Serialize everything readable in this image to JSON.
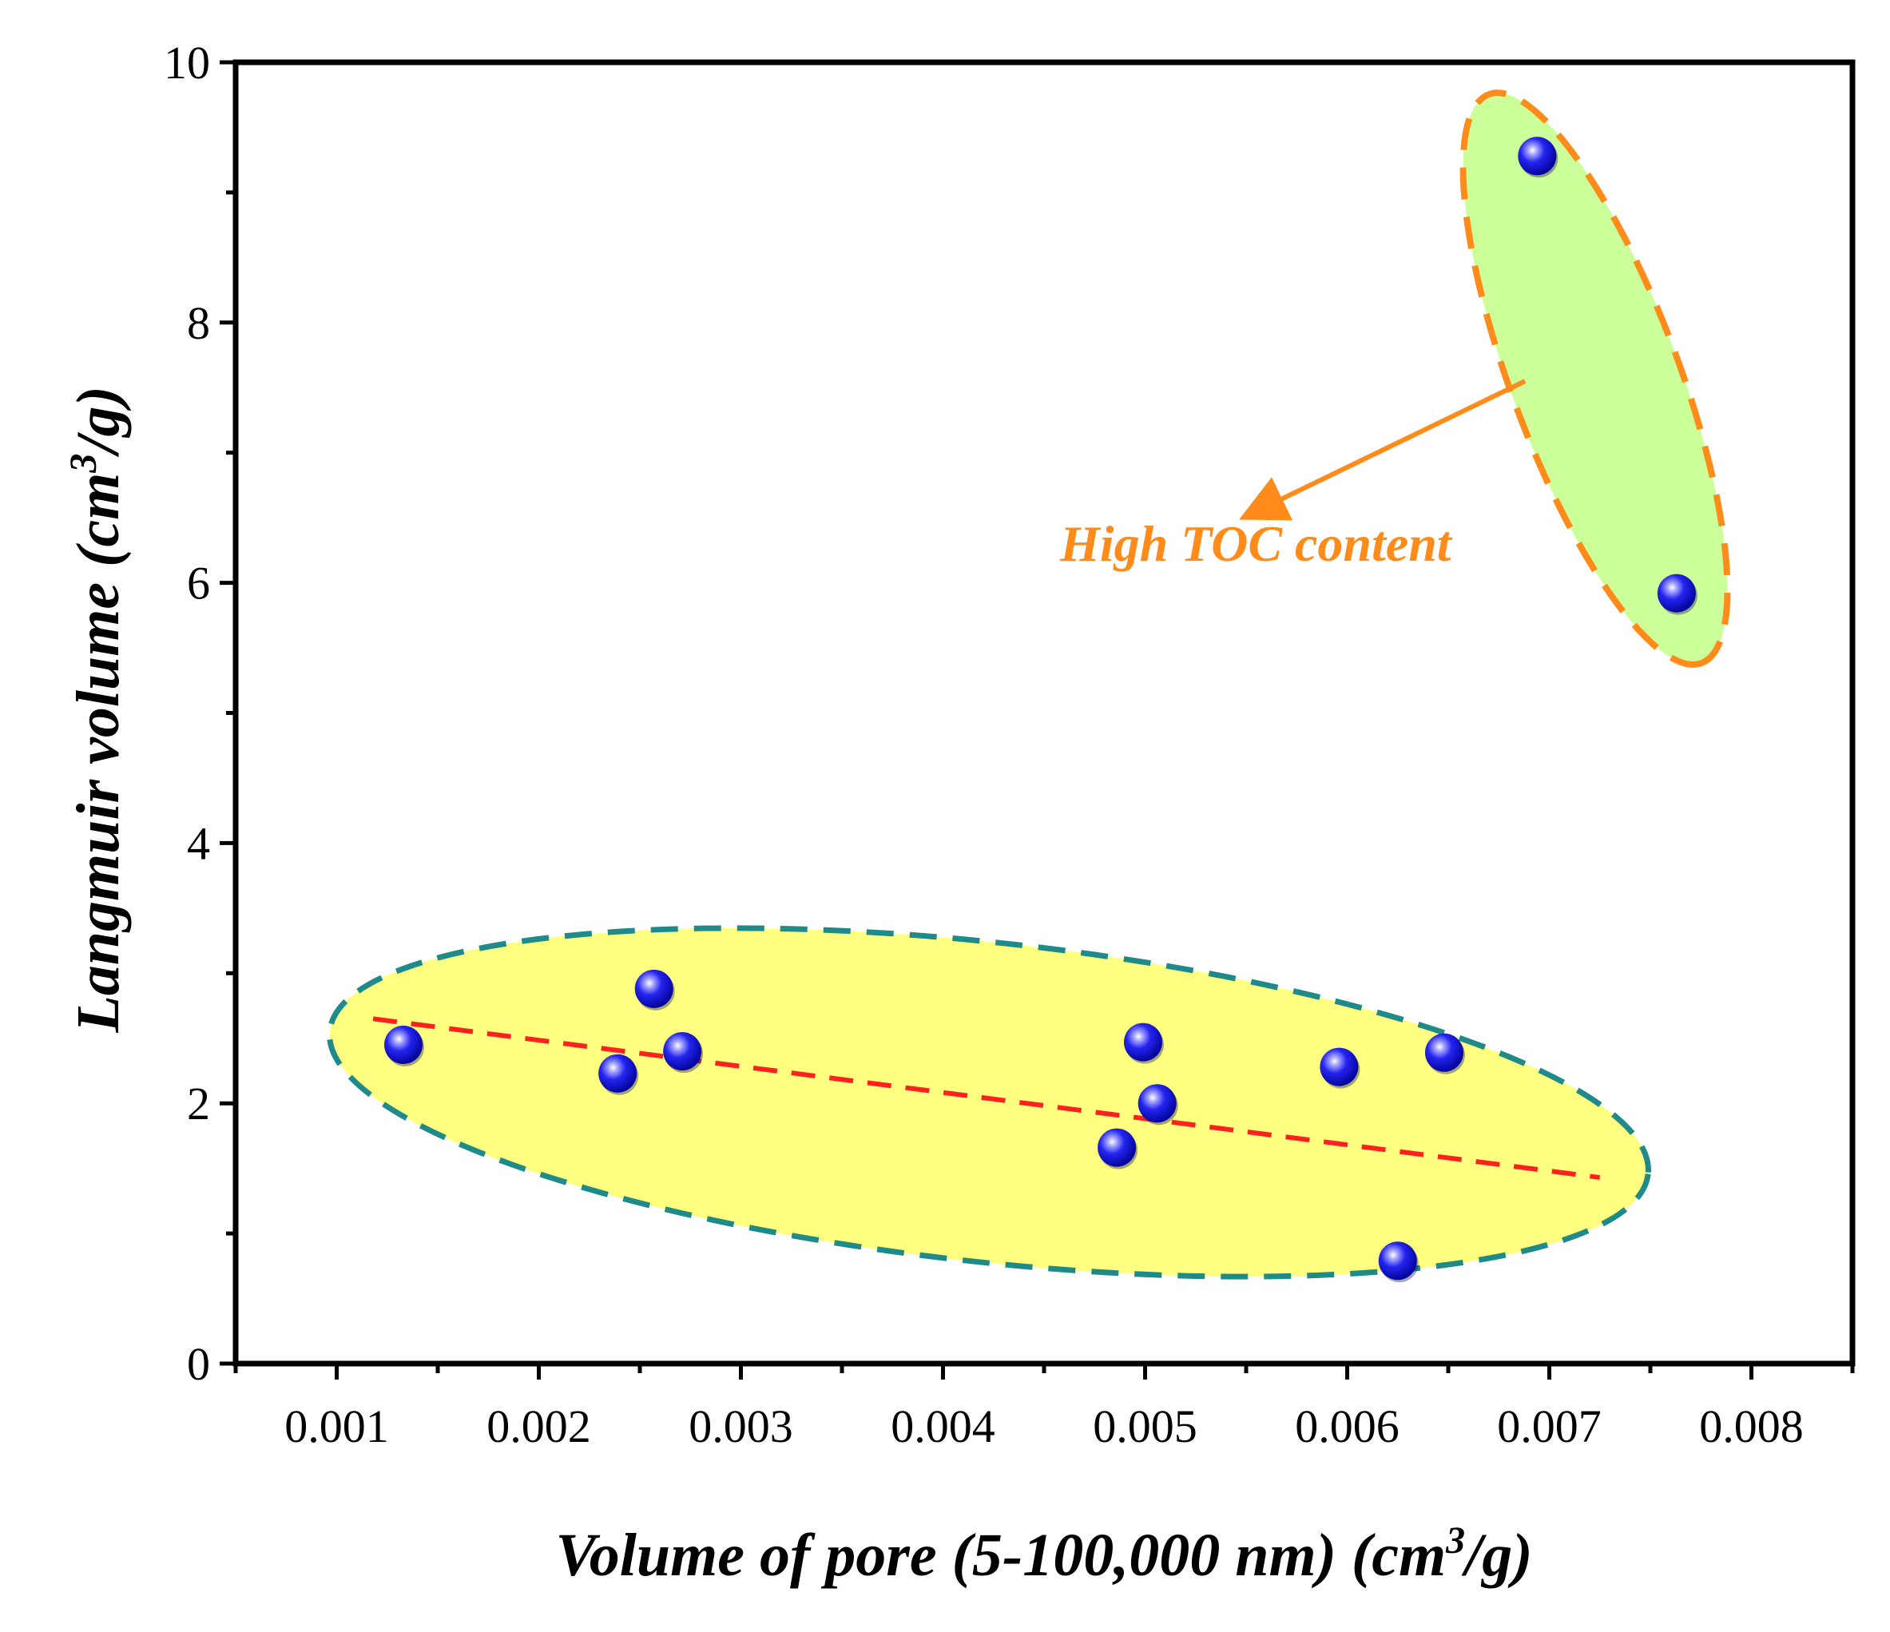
{
  "chart_data": {
    "type": "scatter",
    "xlabel": "Volume of  pore (5-100,000 nm) (cm",
    "xlabel_sup": "3",
    "xlabel_tail": "/g)",
    "ylabel": "Langmuir volume (cm",
    "ylabel_sup": "3",
    "ylabel_tail": "/g)",
    "xlim": [
      0.0005,
      0.0085
    ],
    "ylim": [
      0,
      10
    ],
    "x_ticks": [
      0.001,
      0.002,
      0.003,
      0.004,
      0.005,
      0.006,
      0.007,
      0.008
    ],
    "x_tick_labels": [
      "0.001",
      "0.002",
      "0.003",
      "0.004",
      "0.005",
      "0.006",
      "0.007",
      "0.008"
    ],
    "y_ticks": [
      0,
      2,
      4,
      6,
      8,
      10
    ],
    "y_tick_labels": [
      "0",
      "2",
      "4",
      "6",
      "8",
      "10"
    ],
    "series": [
      {
        "name": "samples",
        "points": [
          {
            "x": 0.00133,
            "y": 2.45
          },
          {
            "x": 0.00239,
            "y": 2.23
          },
          {
            "x": 0.00257,
            "y": 2.88
          },
          {
            "x": 0.00271,
            "y": 2.4
          },
          {
            "x": 0.00486,
            "y": 1.66
          },
          {
            "x": 0.00499,
            "y": 2.47
          },
          {
            "x": 0.00506,
            "y": 2.0
          },
          {
            "x": 0.00596,
            "y": 2.28
          },
          {
            "x": 0.00625,
            "y": 0.79
          },
          {
            "x": 0.00648,
            "y": 2.39
          },
          {
            "x": 0.00694,
            "y": 9.28
          },
          {
            "x": 0.00763,
            "y": 5.92
          }
        ]
      }
    ],
    "trend_line": {
      "x": [
        0.00118,
        0.00725
      ],
      "y": [
        2.65,
        1.43
      ]
    },
    "groups": [
      {
        "name": "low-toc-cluster",
        "center": [
          0.00432,
          2.0
        ],
        "fill": "#ffff80",
        "stroke": "#1f8a8a"
      },
      {
        "name": "high-toc-cluster",
        "center": [
          0.00726,
          7.6
        ],
        "fill": "#ccff99",
        "stroke": "#ff8c1a"
      }
    ],
    "annotation": {
      "text": "High TOC  content",
      "color": "#ff8c1a",
      "arrow_from": [
        0.00688,
        7.55
      ],
      "arrow_to": [
        0.00555,
        6.55
      ]
    },
    "marker_color": "#1e1ee6",
    "trend_color": "#ff2020"
  }
}
